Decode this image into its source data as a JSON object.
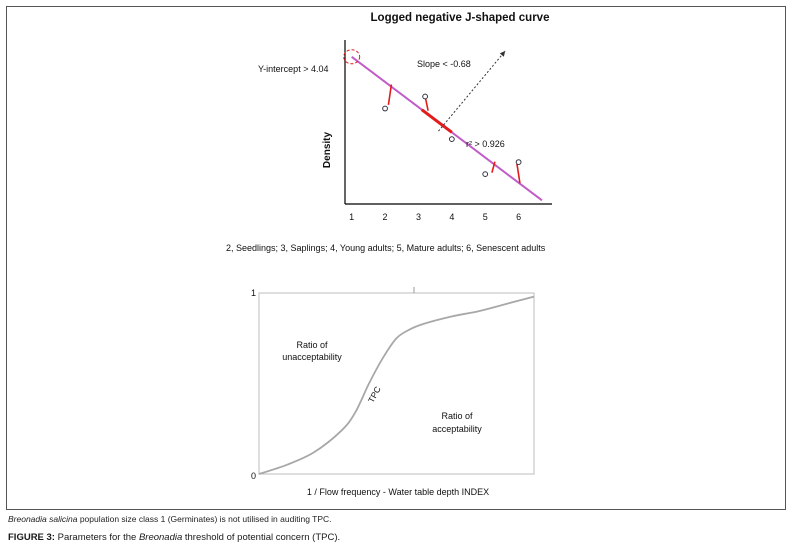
{
  "chart_data": [
    {
      "type": "scatter",
      "title": "Logged negative J-shaped curve",
      "xlabel": "",
      "ylabel": "Density",
      "x_ticks": [
        "1",
        "2",
        "3",
        "4",
        "5",
        "6"
      ],
      "xlim": [
        0.8,
        7.0
      ],
      "ylim": [
        0,
        4.5
      ],
      "points": [
        {
          "x": 2.0,
          "y": 2.62
        },
        {
          "x": 3.2,
          "y": 2.95
        },
        {
          "x": 4.0,
          "y": 1.78
        },
        {
          "x": 5.0,
          "y": 0.82
        },
        {
          "x": 6.0,
          "y": 1.15
        }
      ],
      "fit_line": {
        "x0": 1.0,
        "y0": 4.04,
        "x1": 6.7,
        "y1": 0.1
      },
      "intercept_marker": {
        "x": 1.0,
        "y": 4.04
      },
      "residuals": [
        {
          "x": 2.1,
          "y_from": 2.72,
          "y_to": 3.28
        },
        {
          "x": 3.2,
          "y_from": 2.95,
          "y_to": 2.56
        },
        {
          "x": 5.2,
          "y_from": 0.86,
          "y_to": 1.16
        },
        {
          "x": 5.95,
          "y_from": 1.1,
          "y_to": 0.57
        }
      ],
      "highlight_segment": {
        "x0": 3.1,
        "x1": 4.0
      },
      "slope_arrow": {
        "x0": 3.6,
        "y0": 2.0,
        "x1": 5.6,
        "y1": 4.2
      },
      "annotations": {
        "intercept": "Y-intercept > 4.04",
        "slope": "Slope < -0.68",
        "r2": "r² > 0.926"
      },
      "x_legend": "2, Seedlings; 3, Saplings; 4, Young adults; 5, Mature adults; 6, Senescent adults",
      "colors": {
        "fit_line": "#c05cc8",
        "residual": "#e21b1b",
        "intercept_circle": "#e21b1b",
        "axis": "#000000"
      }
    },
    {
      "type": "line",
      "title": "",
      "xlabel": "1 / Flow frequency - Water table depth INDEX",
      "ylabel": "",
      "y_ticks": [
        "0",
        "1"
      ],
      "ylim": [
        0,
        1
      ],
      "xlim": [
        0,
        1
      ],
      "series": [
        {
          "name": "TPC",
          "x": [
            0.0,
            0.1,
            0.2,
            0.3,
            0.35,
            0.4,
            0.45,
            0.5,
            0.55,
            0.6,
            0.7,
            0.8,
            0.9,
            1.0
          ],
          "y": [
            0.0,
            0.05,
            0.12,
            0.24,
            0.34,
            0.5,
            0.64,
            0.75,
            0.8,
            0.83,
            0.87,
            0.9,
            0.94,
            0.98
          ]
        }
      ],
      "region_labels": {
        "upper": [
          "Ratio of",
          "unacceptability"
        ],
        "lower": [
          "Ratio of",
          "acceptability"
        ],
        "curve": "TPC"
      },
      "colors": {
        "curve": "#a8a8a8",
        "frame": "#bdbdbd"
      }
    }
  ],
  "footnote": {
    "italic": "Breonadia salicina",
    "text": " population size class 1 (Germinates) is not utilised in auditing TPC."
  },
  "caption": {
    "label": "FIGURE 3:",
    "pre": " Parameters for the ",
    "italic": "Breonadia",
    "post": " threshold of potential concern (TPC)."
  }
}
